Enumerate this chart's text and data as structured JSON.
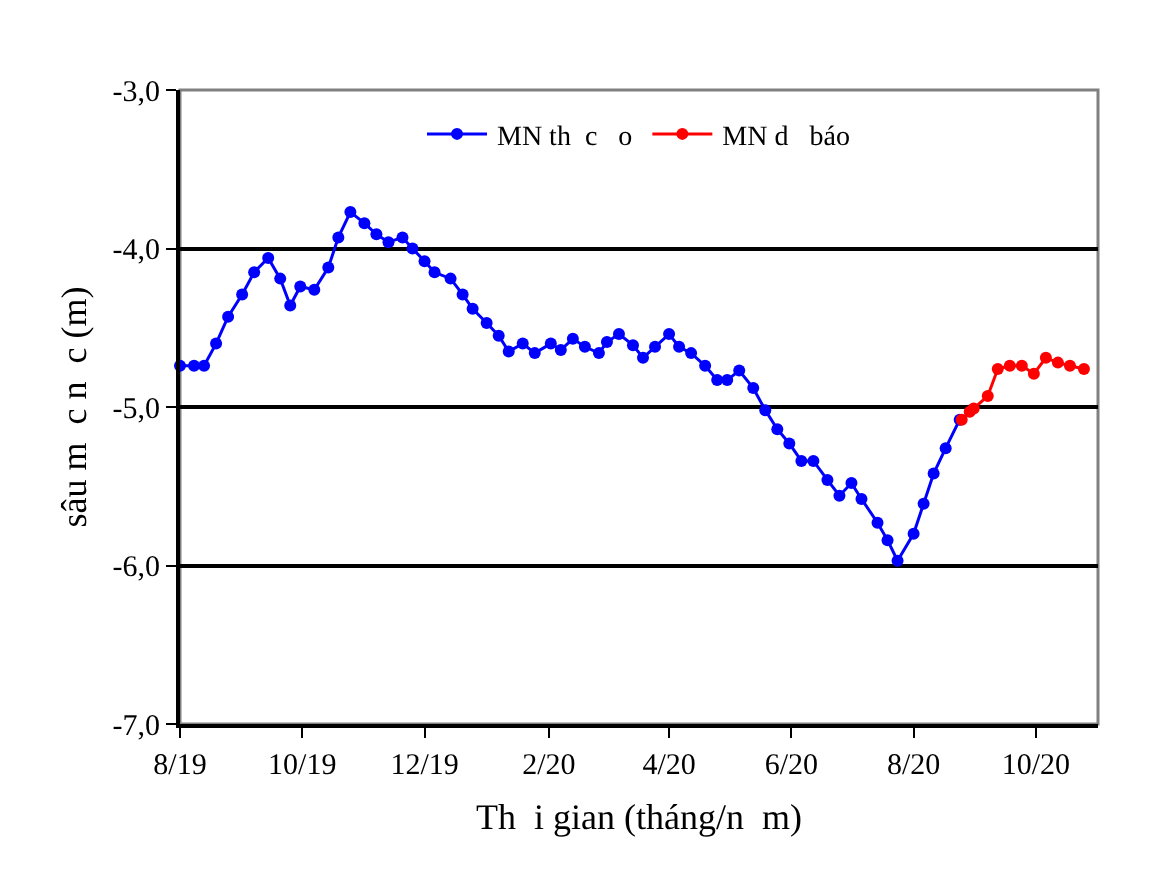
{
  "chart_data": {
    "type": "line",
    "xlabel": "Th  i gian (tháng/n  m)",
    "ylabel": "sâu m  c n  c (m)",
    "xlim": [
      "2019-08-01",
      "2020-11-01"
    ],
    "xticks": [
      {
        "value": "2019-08-01",
        "label": "8/19"
      },
      {
        "value": "2019-10-01",
        "label": "10/19"
      },
      {
        "value": "2019-12-01",
        "label": "12/19"
      },
      {
        "value": "2020-02-01",
        "label": "2/20"
      },
      {
        "value": "2020-04-01",
        "label": "4/20"
      },
      {
        "value": "2020-06-01",
        "label": "6/20"
      },
      {
        "value": "2020-08-01",
        "label": "8/20"
      },
      {
        "value": "2020-10-01",
        "label": "10/20"
      }
    ],
    "ylim": [
      -7,
      -3
    ],
    "yticks": [
      {
        "value": -7,
        "label": "-7,0"
      },
      {
        "value": -6,
        "label": "-6,0"
      },
      {
        "value": -5,
        "label": "-5,0"
      },
      {
        "value": -4,
        "label": "-4,0"
      },
      {
        "value": -3,
        "label": "-3,0"
      }
    ],
    "grid": "y",
    "legend": "top",
    "marker": "circle",
    "series": [
      {
        "name": "MN th  c   o",
        "color": "#0000ff",
        "line_style": "solid",
        "x": [
          "2019-08-01",
          "2019-08-08",
          "2019-08-13",
          "2019-08-19",
          "2019-08-25",
          "2019-09-01",
          "2019-09-07",
          "2019-09-14",
          "2019-09-20",
          "2019-09-25",
          "2019-09-30",
          "2019-10-07",
          "2019-10-14",
          "2019-10-19",
          "2019-10-25",
          "2019-11-01",
          "2019-11-07",
          "2019-11-13",
          "2019-11-20",
          "2019-11-25",
          "2019-12-01",
          "2019-12-06",
          "2019-12-14",
          "2019-12-20",
          "2019-12-25",
          "2020-01-01",
          "2020-01-07",
          "2020-01-12",
          "2020-01-19",
          "2020-01-25",
          "2020-02-02",
          "2020-02-07",
          "2020-02-13",
          "2020-02-19",
          "2020-02-26",
          "2020-03-01",
          "2020-03-07",
          "2020-03-14",
          "2020-03-19",
          "2020-03-25",
          "2020-04-01",
          "2020-04-06",
          "2020-04-12",
          "2020-04-19",
          "2020-04-25",
          "2020-04-30",
          "2020-05-06",
          "2020-05-13",
          "2020-05-19",
          "2020-05-25",
          "2020-05-31",
          "2020-06-06",
          "2020-06-12",
          "2020-06-19",
          "2020-06-25",
          "2020-07-01",
          "2020-07-06",
          "2020-07-14",
          "2020-07-19",
          "2020-07-24",
          "2020-08-01",
          "2020-08-06",
          "2020-08-11",
          "2020-08-17",
          "2020-08-24"
        ],
        "values": [
          -4.74,
          -4.74,
          -4.74,
          -4.6,
          -4.43,
          -4.29,
          -4.15,
          -4.06,
          -4.19,
          -4.36,
          -4.24,
          -4.26,
          -4.12,
          -3.93,
          -3.77,
          -3.84,
          -3.91,
          -3.96,
          -3.93,
          -4.0,
          -4.08,
          -4.15,
          -4.19,
          -4.29,
          -4.38,
          -4.47,
          -4.55,
          -4.65,
          -4.6,
          -4.66,
          -4.6,
          -4.64,
          -4.57,
          -4.62,
          -4.66,
          -4.59,
          -4.54,
          -4.61,
          -4.69,
          -4.62,
          -4.54,
          -4.62,
          -4.66,
          -4.74,
          -4.83,
          -4.83,
          -4.77,
          -4.88,
          -5.02,
          -5.14,
          -5.23,
          -5.34,
          -5.34,
          -5.46,
          -5.56,
          -5.48,
          -5.58,
          -5.73,
          -5.84,
          -5.97,
          -5.8,
          -5.61,
          -5.42,
          -5.26,
          -5.08
        ]
      },
      {
        "name": "MN d   báo",
        "color": "#ff0000",
        "line_style": "solid",
        "x": [
          "2020-08-25",
          "2020-08-29",
          "2020-08-31",
          "2020-09-07",
          "2020-09-12",
          "2020-09-18",
          "2020-09-24",
          "2020-09-30",
          "2020-10-06",
          "2020-10-12",
          "2020-10-18",
          "2020-10-25"
        ],
        "values": [
          -5.08,
          -5.03,
          -5.01,
          -4.93,
          -4.76,
          -4.74,
          -4.74,
          -4.79,
          -4.69,
          -4.72,
          -4.74,
          -4.76
        ]
      }
    ]
  }
}
